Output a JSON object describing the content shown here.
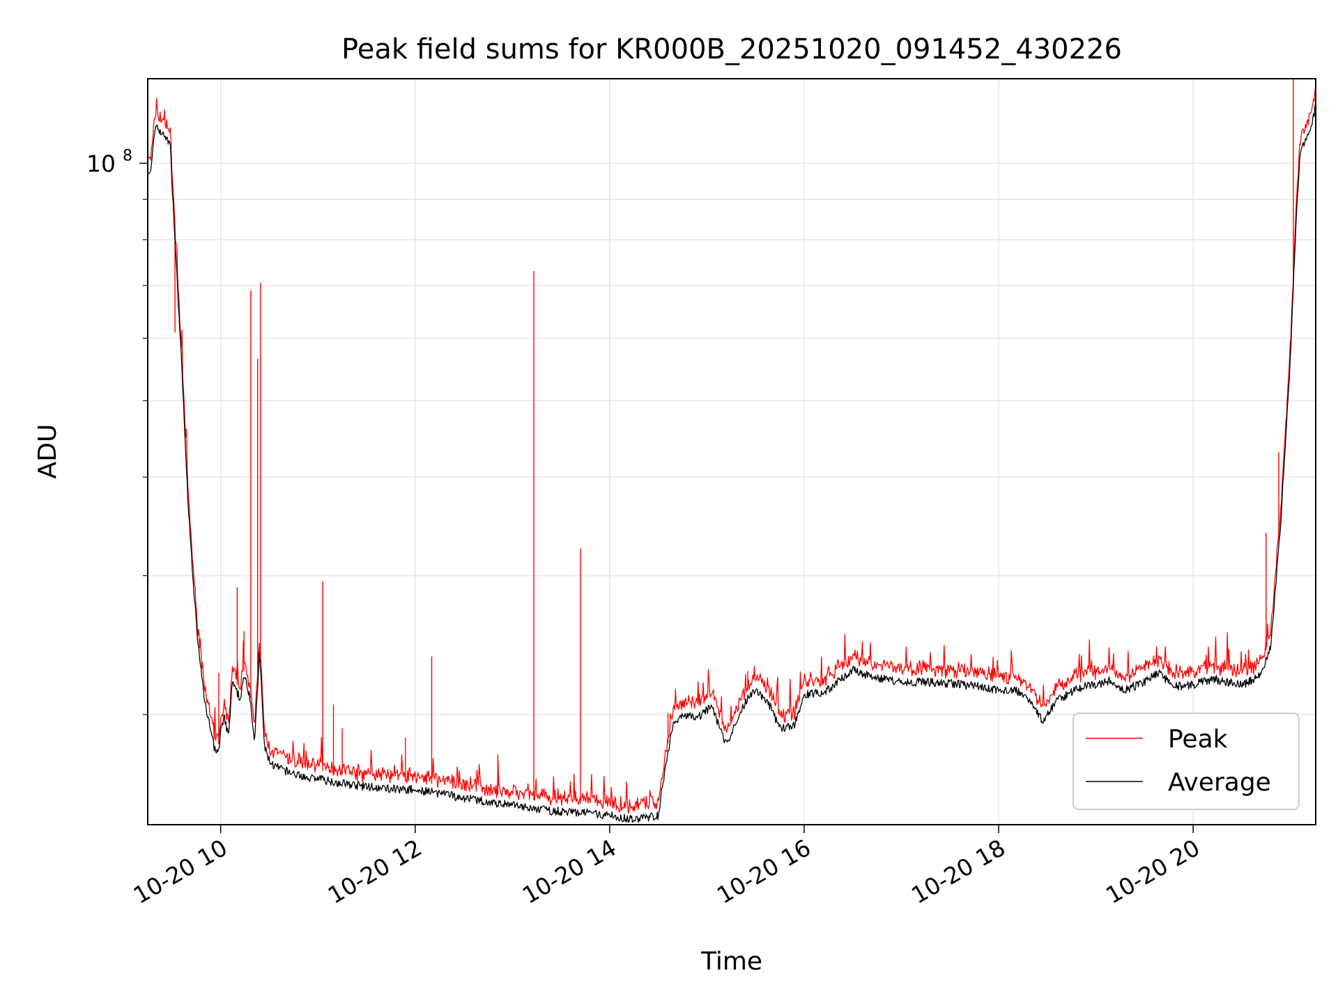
{
  "chart_data": {
    "type": "line",
    "title": "Peak field sums for KR000B_20251020_091452_430226",
    "xlabel": "Time",
    "ylabel": "ADU",
    "yscale": "log",
    "ylim": [
      14500000,
      128000000
    ],
    "xlim_hours": [
      9.25,
      21.26
    ],
    "grid": true,
    "legend_location": "lower-right",
    "x_ticks": [
      {
        "hour": 10,
        "label": "10-20 10"
      },
      {
        "hour": 12,
        "label": "10-20 12"
      },
      {
        "hour": 14,
        "label": "10-20 14"
      },
      {
        "hour": 16,
        "label": "10-20 16"
      },
      {
        "hour": 18,
        "label": "10-20 18"
      },
      {
        "hour": 20,
        "label": "10-20 20"
      }
    ],
    "y_major_ticks": [
      {
        "value": 100000000,
        "base": "10",
        "exponent": "8"
      }
    ],
    "y_minor_ticks": [
      20000000,
      30000000,
      40000000,
      50000000,
      60000000,
      70000000,
      80000000,
      90000000
    ],
    "series": [
      {
        "name": "Average",
        "color": "#000000",
        "x_hours": [
          9.25,
          9.28,
          9.33,
          9.42,
          9.48,
          9.53,
          9.6,
          9.67,
          9.75,
          9.82,
          9.88,
          9.93,
          9.98,
          10.0,
          10.04,
          10.08,
          10.12,
          10.15,
          10.2,
          10.25,
          10.3,
          10.35,
          10.4,
          10.45,
          10.5,
          10.55,
          10.6,
          10.7,
          10.85,
          11.0,
          11.2,
          11.5,
          11.8,
          12.0,
          12.1,
          12.3,
          12.6,
          12.9,
          13.2,
          13.4,
          13.6,
          13.8,
          14.0,
          14.2,
          14.4,
          14.5,
          14.55,
          14.65,
          14.75,
          14.9,
          15.05,
          15.2,
          15.3,
          15.4,
          15.5,
          15.65,
          15.75,
          15.9,
          16.0,
          16.2,
          16.35,
          16.5,
          16.6,
          16.8,
          17.0,
          17.2,
          17.5,
          17.8,
          18.0,
          18.2,
          18.35,
          18.45,
          18.6,
          18.8,
          19.0,
          19.15,
          19.3,
          19.5,
          19.65,
          19.8,
          20.0,
          20.2,
          20.35,
          20.5,
          20.6,
          20.7,
          20.8,
          20.9,
          21.0,
          21.05,
          21.1,
          21.15,
          21.2,
          21.26
        ],
        "values": [
          98000000,
          97000000,
          112000000,
          108000000,
          106000000,
          80000000,
          55000000,
          36000000,
          26000000,
          21500000,
          19500000,
          18200000,
          17900000,
          19000000,
          19800000,
          18700000,
          22000000,
          21500000,
          21000000,
          22500000,
          21000000,
          18500000,
          24000000,
          18200000,
          17500000,
          17200000,
          17100000,
          16900000,
          16700000,
          16600000,
          16400000,
          16200000,
          16100000,
          16050000,
          16000000,
          15850000,
          15600000,
          15400000,
          15200000,
          15100000,
          15050000,
          15000000,
          14900000,
          14750000,
          14800000,
          14900000,
          16500000,
          19500000,
          20000000,
          19800000,
          20500000,
          18300000,
          19500000,
          20800000,
          21600000,
          20500000,
          19200000,
          19400000,
          21200000,
          21300000,
          22000000,
          22800000,
          22500000,
          22200000,
          22000000,
          22000000,
          21900000,
          21700000,
          21500000,
          21400000,
          20700000,
          19600000,
          20800000,
          21600000,
          21800000,
          22100000,
          21500000,
          22000000,
          22600000,
          21700000,
          21800000,
          22200000,
          22000000,
          21800000,
          22100000,
          22600000,
          24500000,
          35000000,
          57000000,
          80000000,
          104000000,
          107000000,
          110000000,
          118000000
        ]
      },
      {
        "name": "Peak",
        "color": "#ff0000",
        "baseline_ratio": 1.025,
        "spikes": [
          {
            "hour": 10.31,
            "value": 69000000
          },
          {
            "hour": 10.38,
            "value": 56500000
          },
          {
            "hour": 10.41,
            "value": 70500000
          },
          {
            "hour": 9.53,
            "value": 61000000
          },
          {
            "hour": 10.17,
            "value": 29000000
          },
          {
            "hour": 10.24,
            "value": 25500000
          },
          {
            "hour": 11.05,
            "value": 29500000
          },
          {
            "hour": 11.16,
            "value": 20600000
          },
          {
            "hour": 12.17,
            "value": 23700000
          },
          {
            "hour": 13.22,
            "value": 73000000
          },
          {
            "hour": 13.7,
            "value": 32500000
          },
          {
            "hour": 14.6,
            "value": 20100000
          },
          {
            "hour": 20.75,
            "value": 34000000
          },
          {
            "hour": 21.03,
            "value": 128000000
          },
          {
            "hour": 20.88,
            "value": 43000000
          },
          {
            "hour": 9.98,
            "value": 22600000
          },
          {
            "hour": 11.25,
            "value": 19200000
          },
          {
            "hour": 11.9,
            "value": 18700000
          },
          {
            "hour": 12.85,
            "value": 17800000
          },
          {
            "hour": 15.42,
            "value": 22700000
          }
        ]
      }
    ]
  }
}
